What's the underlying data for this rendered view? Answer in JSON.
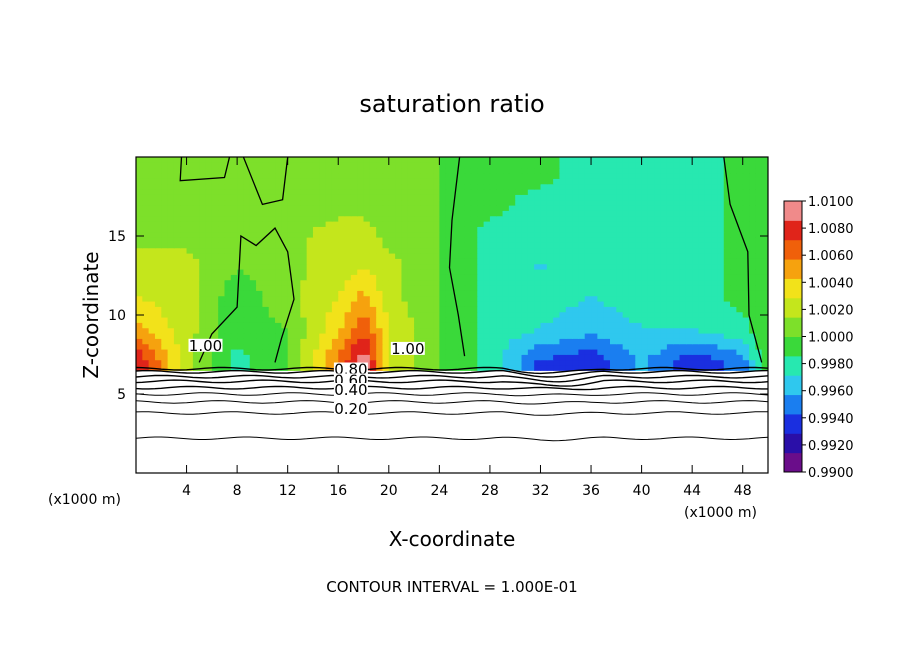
{
  "chart_data": {
    "type": "heatmap",
    "title": "saturation ratio",
    "xlabel": "X-coordinate",
    "ylabel": "Z-coordinate",
    "x_unit_left": "(x1000 m)",
    "x_unit_right": "(x1000 m)",
    "xlim": [
      0,
      50
    ],
    "ylim": [
      0,
      20
    ],
    "x_ticks": [
      4,
      8,
      12,
      16,
      20,
      24,
      28,
      32,
      36,
      40,
      44,
      48
    ],
    "y_ticks": [
      5,
      10,
      15
    ],
    "colorbar": {
      "min": 0.99,
      "max": 1.01,
      "ticks": [
        "1.0100",
        "1.0080",
        "1.0060",
        "1.0040",
        "1.0020",
        "1.0000",
        "0.9980",
        "0.9960",
        "0.9940",
        "0.9920",
        "0.9900"
      ],
      "colors": [
        "#6a0d8a",
        "#2a0fa8",
        "#1a2fe0",
        "#1a7ef0",
        "#2fc8ee",
        "#27e8b0",
        "#3ad93a",
        "#7de02a",
        "#c4e61c",
        "#f2e21a",
        "#f6a20e",
        "#f0600a",
        "#e0241a",
        "#f08a8a"
      ]
    },
    "contour_labels": [
      {
        "text": "1.00",
        "x": 5.5,
        "z": 7.8
      },
      {
        "text": "1.00",
        "x": 21.5,
        "z": 7.6
      },
      {
        "text": "0.80",
        "x": 17,
        "z": 6.3
      },
      {
        "text": "0.60",
        "x": 17,
        "z": 5.6
      },
      {
        "text": "0.40",
        "x": 17,
        "z": 5.0
      },
      {
        "text": "0.20",
        "x": 17,
        "z": 3.8
      }
    ],
    "contour_lines_z": [
      2.2,
      3.8,
      4.5,
      5.0,
      5.4,
      5.8,
      6.1,
      6.4,
      6.6
    ],
    "field_samples": {
      "x": [
        0,
        4,
        8,
        12,
        16,
        18,
        20,
        24,
        28,
        32,
        36,
        40,
        44,
        48,
        50
      ],
      "z": [
        7,
        9,
        11,
        13,
        15,
        17,
        19
      ],
      "values": [
        [
          1.009,
          1.002,
          0.998,
          1.0,
          1.006,
          1.01,
          1.003,
          1.0,
          0.998,
          0.994,
          0.993,
          0.996,
          0.993,
          0.995,
          1.0
        ],
        [
          1.005,
          1.002,
          0.999,
          1.0,
          1.004,
          1.007,
          1.003,
          1.0,
          0.998,
          0.997,
          0.996,
          0.997,
          0.997,
          0.998,
          1.0
        ],
        [
          1.003,
          1.002,
          0.999,
          1.001,
          1.003,
          1.005,
          1.002,
          1.0,
          0.998,
          0.998,
          0.997,
          0.998,
          0.998,
          0.999,
          1.0
        ],
        [
          1.002,
          1.002,
          1.0,
          1.001,
          1.002,
          1.003,
          1.002,
          1.0,
          0.998,
          0.997,
          0.998,
          0.998,
          0.998,
          0.999,
          1.0
        ],
        [
          1.001,
          1.001,
          1.0,
          1.001,
          1.002,
          1.002,
          1.001,
          1.0,
          0.998,
          0.998,
          0.998,
          0.998,
          0.998,
          0.999,
          1.0
        ],
        [
          1.0,
          1.0,
          1.0,
          1.001,
          1.001,
          1.001,
          1.001,
          1.0,
          0.999,
          0.998,
          0.998,
          0.998,
          0.998,
          0.999,
          1.0
        ],
        [
          1.0,
          1.0,
          1.0,
          1.0,
          1.001,
          1.001,
          1.0,
          1.0,
          0.999,
          0.999,
          0.998,
          0.998,
          0.998,
          0.999,
          1.0
        ]
      ]
    },
    "footer": "CONTOUR INTERVAL = 1.000E-01"
  }
}
